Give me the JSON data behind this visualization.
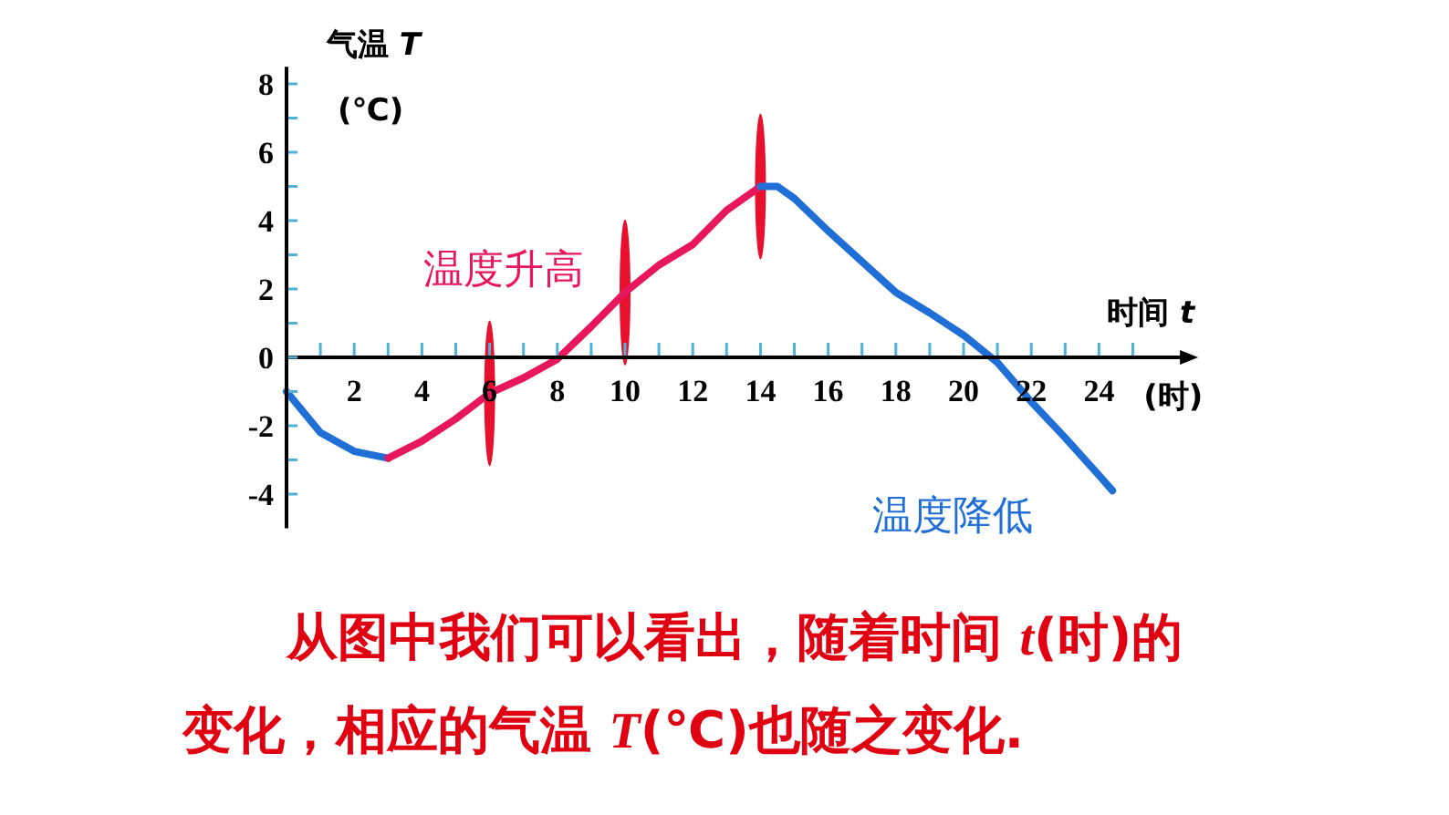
{
  "chart_data": {
    "type": "line",
    "xlabel": "时间 *t* (时)",
    "ylabel": "气温 *T* (℃)",
    "xlim": [
      0,
      26.5
    ],
    "ylim": [
      -5,
      8.5
    ],
    "xticks": [
      {
        "value": 1,
        "label": null
      },
      2,
      {
        "value": 3,
        "label": null
      },
      4,
      {
        "value": 5,
        "label": null
      },
      6,
      {
        "value": 7,
        "label": null
      },
      8,
      {
        "value": 9,
        "label": null
      },
      10,
      {
        "value": 11,
        "label": null
      },
      12,
      {
        "value": 13,
        "label": null
      },
      14,
      {
        "value": 15,
        "label": null
      },
      16,
      {
        "value": 17,
        "label": null
      },
      18,
      {
        "value": 19,
        "label": null
      },
      20,
      {
        "value": 21,
        "label": null
      },
      22,
      {
        "value": 23,
        "label": null
      },
      24,
      {
        "value": 25,
        "label": null
      }
    ],
    "yticks": [
      -4,
      {
        "value": -3,
        "label": null
      },
      -2,
      {
        "value": -1,
        "label": null
      },
      0,
      {
        "value": 1,
        "label": null
      },
      2,
      {
        "value": 3,
        "label": null
      },
      4,
      {
        "value": 5,
        "label": null
      },
      6,
      {
        "value": 7,
        "label": null
      },
      8
    ],
    "series": [
      {
        "color": "#1f6fd6",
        "x": [
          0,
          1,
          2,
          3
        ],
        "values": [
          -1.0,
          -2.2,
          -2.75,
          -2.95
        ]
      },
      {
        "name": "温度升高",
        "color": "#e8175d",
        "x": [
          3,
          4,
          5,
          6,
          7,
          8,
          9,
          10,
          11,
          12,
          13,
          14
        ],
        "values": [
          -2.95,
          -2.45,
          -1.8,
          -1.05,
          -0.6,
          -0.05,
          0.9,
          1.9,
          2.7,
          3.3,
          4.3,
          5.0
        ]
      },
      {
        "name": "温度降低",
        "color": "#1f6fd6",
        "x": [
          14,
          14.5,
          15,
          16,
          17,
          18,
          19,
          20,
          21,
          22,
          23,
          24,
          24.4
        ],
        "values": [
          5.0,
          5.0,
          4.65,
          3.7,
          2.8,
          1.9,
          1.3,
          0.65,
          -0.15,
          -1.3,
          -2.35,
          -3.45,
          -3.9
        ]
      }
    ],
    "annotations": [
      "从图中我们可以看出，随着时间 *t*(时)的变化，相应的气温 *T*(℃)也随之变化."
    ]
  }
}
